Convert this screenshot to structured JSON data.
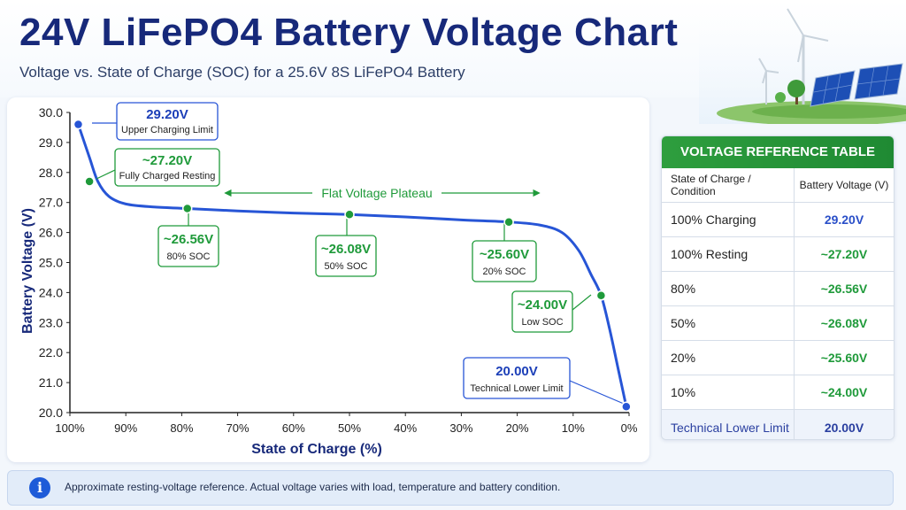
{
  "header": {
    "title": "24V LiFePO4 Battery Voltage Chart",
    "subtitle": "Voltage vs. State of Charge (SOC) for a 25.6V 8S LiFePO4 Battery"
  },
  "colors": {
    "curve": "#2755d6",
    "green": "#1f9a3a",
    "navy": "#17297a"
  },
  "chart_data": {
    "type": "line",
    "xlabel": "State of Charge (%)",
    "ylabel": "Battery Voltage (V)",
    "x_ticks": [
      "100%",
      "90%",
      "80%",
      "70%",
      "60%",
      "50%",
      "40%",
      "30%",
      "20%",
      "10%",
      "0%"
    ],
    "x_reversed": true,
    "xlim": [
      100,
      0
    ],
    "ylim": [
      20,
      30
    ],
    "y_ticks": [
      "20.0",
      "21.0",
      "22.0",
      "23.0",
      "24.0",
      "25.0",
      "26.0",
      "27.0",
      "28.0",
      "29.0",
      "30.0"
    ],
    "grid": false,
    "series": [
      {
        "x": [
          98.5,
          96.5,
          95,
          93,
          90,
          85,
          79,
          70,
          60,
          50,
          40,
          30,
          21.5,
          16,
          12,
          9,
          6.8,
          5,
          3.5,
          2,
          0.5
        ],
        "y": [
          29.6,
          28.5,
          27.7,
          27.2,
          26.95,
          26.85,
          26.8,
          26.72,
          26.65,
          26.6,
          26.52,
          26.42,
          26.35,
          26.25,
          26.0,
          25.4,
          24.6,
          23.9,
          22.8,
          21.5,
          20.2
        ]
      }
    ],
    "markers": [
      {
        "x": 98.5,
        "y": 29.6,
        "color": "#2755d6"
      },
      {
        "x": 96.5,
        "y": 27.7,
        "color": "#1f9a3a"
      },
      {
        "x": 79,
        "y": 26.8,
        "color": "#1f9a3a"
      },
      {
        "x": 50,
        "y": 26.6,
        "color": "#1f9a3a"
      },
      {
        "x": 21.5,
        "y": 26.35,
        "color": "#1f9a3a"
      },
      {
        "x": 5,
        "y": 23.9,
        "color": "#1f9a3a"
      },
      {
        "x": 0.5,
        "y": 20.2,
        "color": "#2755d6"
      }
    ],
    "annotations": [
      {
        "value": "29.20V",
        "label": "Upper Charging Limit",
        "style": "blue"
      },
      {
        "value": "~27.20V",
        "label": "Fully Charged Resting",
        "style": "green"
      },
      {
        "value": "~26.56V",
        "label": "80% SOC",
        "style": "green"
      },
      {
        "value": "~26.08V",
        "label": "50% SOC",
        "style": "green"
      },
      {
        "value": "~25.60V",
        "label": "20% SOC",
        "style": "green"
      },
      {
        "value": "~24.00V",
        "label": "Low SOC",
        "style": "green"
      },
      {
        "value": "20.00V",
        "label": "Technical Lower Limit",
        "style": "blue"
      }
    ],
    "plateau_label": "Flat Voltage Plateau"
  },
  "table": {
    "title": "VOLTAGE REFERENCE TABLE",
    "col1": "State of Charge / Condition",
    "col2": "Battery Voltage (V)",
    "rows": [
      {
        "cond": "100% Charging",
        "volt": "29.20V",
        "color": "#2a4fc8"
      },
      {
        "cond": "100% Resting",
        "volt": "~27.20V",
        "color": "#1f9a3a"
      },
      {
        "cond": "80%",
        "volt": "~26.56V",
        "color": "#1f9a3a"
      },
      {
        "cond": "50%",
        "volt": "~26.08V",
        "color": "#1f9a3a"
      },
      {
        "cond": "20%",
        "volt": "~25.60V",
        "color": "#1f9a3a"
      },
      {
        "cond": "10%",
        "volt": "~24.00V",
        "color": "#1f9a3a"
      },
      {
        "cond": "Technical Lower Limit",
        "volt": "20.00V",
        "color": "#2a3fa0"
      }
    ]
  },
  "info": {
    "icon": "info-icon",
    "glyph": "i",
    "text": "Approximate resting-voltage reference. Actual voltage varies with load, temperature and battery condition."
  }
}
